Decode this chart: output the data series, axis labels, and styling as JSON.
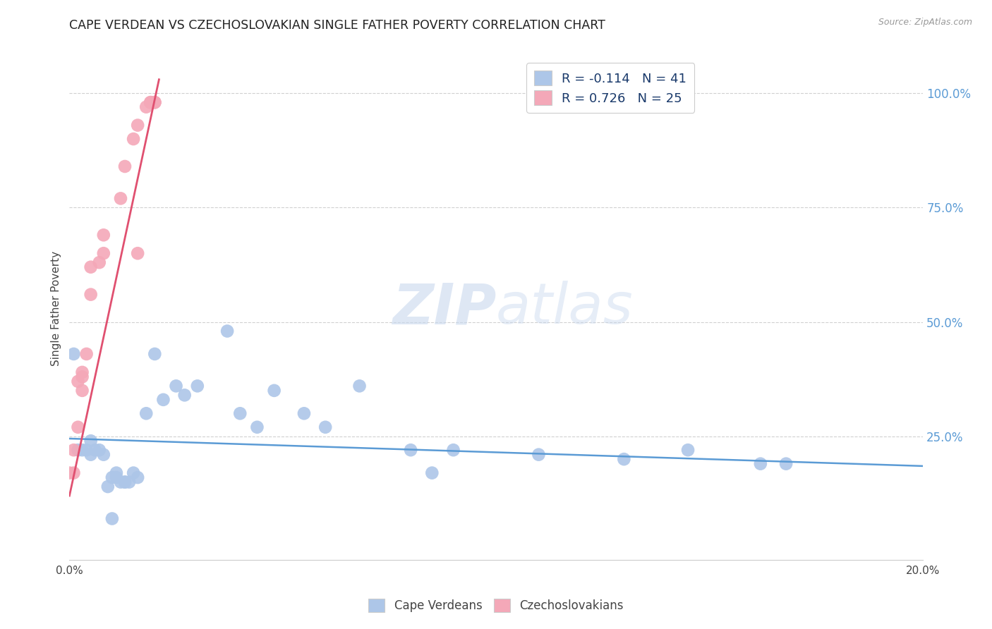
{
  "title": "CAPE VERDEAN VS CZECHOSLOVAKIAN SINGLE FATHER POVERTY CORRELATION CHART",
  "source": "Source: ZipAtlas.com",
  "ylabel": "Single Father Poverty",
  "right_yticks": [
    "100.0%",
    "75.0%",
    "50.0%",
    "25.0%"
  ],
  "right_ytick_vals": [
    1.0,
    0.75,
    0.5,
    0.25
  ],
  "xlim": [
    0.0,
    0.2
  ],
  "ylim": [
    -0.02,
    1.08
  ],
  "legend_r1": "R = -0.114   N = 41",
  "legend_r2": "R = 0.726   N = 25",
  "cape_verdean_color": "#adc6e8",
  "czechoslovakian_color": "#f4a8b8",
  "blue_line_color": "#5b9bd5",
  "pink_line_color": "#e05070",
  "cape_verdeans_x": [
    0.001,
    0.002,
    0.003,
    0.004,
    0.005,
    0.005,
    0.006,
    0.007,
    0.008,
    0.009,
    0.01,
    0.01,
    0.011,
    0.011,
    0.012,
    0.013,
    0.013,
    0.014,
    0.015,
    0.016,
    0.018,
    0.02,
    0.022,
    0.025,
    0.027,
    0.03,
    0.037,
    0.04,
    0.044,
    0.048,
    0.055,
    0.06,
    0.068,
    0.08,
    0.085,
    0.09,
    0.11,
    0.13,
    0.145,
    0.162,
    0.168
  ],
  "cape_verdeans_y": [
    0.43,
    0.22,
    0.22,
    0.22,
    0.24,
    0.21,
    0.22,
    0.22,
    0.21,
    0.14,
    0.16,
    0.07,
    0.17,
    0.16,
    0.15,
    0.15,
    0.15,
    0.15,
    0.17,
    0.16,
    0.3,
    0.43,
    0.33,
    0.36,
    0.34,
    0.36,
    0.48,
    0.3,
    0.27,
    0.35,
    0.3,
    0.27,
    0.36,
    0.22,
    0.17,
    0.22,
    0.21,
    0.2,
    0.22,
    0.19,
    0.19
  ],
  "czechoslovakian_x": [
    0.0,
    0.001,
    0.001,
    0.002,
    0.002,
    0.003,
    0.003,
    0.003,
    0.004,
    0.005,
    0.005,
    0.007,
    0.008,
    0.008,
    0.012,
    0.013,
    0.015,
    0.016,
    0.018,
    0.019,
    0.019,
    0.02,
    0.02,
    0.02,
    0.016
  ],
  "czechoslovakian_y": [
    0.17,
    0.22,
    0.17,
    0.27,
    0.37,
    0.35,
    0.38,
    0.39,
    0.43,
    0.56,
    0.62,
    0.63,
    0.65,
    0.69,
    0.77,
    0.84,
    0.9,
    0.93,
    0.97,
    0.98,
    0.98,
    0.98,
    0.98,
    0.98,
    0.65
  ],
  "blue_line_x": [
    0.0,
    0.2
  ],
  "blue_line_y": [
    0.245,
    0.185
  ],
  "pink_line_x": [
    0.0,
    0.021
  ],
  "pink_line_y": [
    0.12,
    1.03
  ]
}
